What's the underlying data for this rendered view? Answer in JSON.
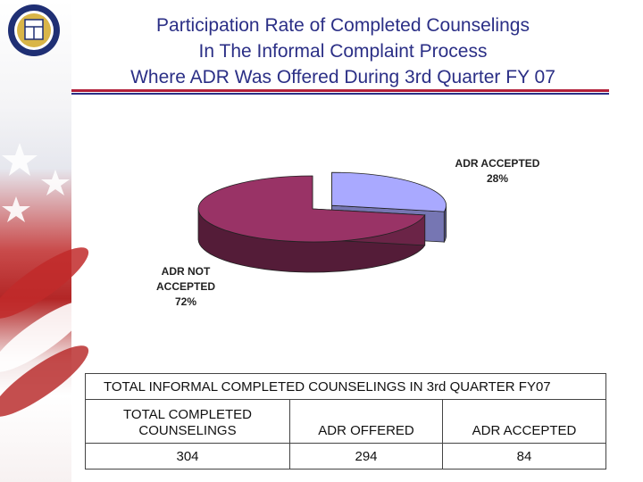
{
  "title": {
    "line1": "Participation Rate of Completed Counselings",
    "line2": "In The Informal Complaint Process",
    "line3": "Where ADR Was Offered During 3rd Quarter FY 07"
  },
  "colors": {
    "accepted": "#a9a9ff",
    "not_accepted": "#993366",
    "title": "#2b2f86"
  },
  "chart_data": {
    "type": "pie",
    "title": "Participation Rate of Completed Counselings In The Informal Complaint Process Where ADR Was Offered During 3rd Quarter FY 07",
    "slices": [
      {
        "label": "ADR ACCEPTED",
        "value": 28,
        "value_label": "28%"
      },
      {
        "label": "ADR NOT ACCEPTED",
        "value": 72,
        "value_label": "72%"
      }
    ],
    "style": "3d-exploded"
  },
  "table": {
    "caption": "TOTAL INFORMAL COMPLETED COUNSELINGS IN 3rd QUARTER FY07",
    "headers": [
      "TOTAL COMPLETED COUNSELINGS",
      "ADR OFFERED",
      "ADR ACCEPTED"
    ],
    "values": [
      "304",
      "294",
      "84"
    ]
  },
  "decor": {
    "seal_icon": "treasury-seal-icon",
    "flag_icon": "flag-background-icon"
  }
}
